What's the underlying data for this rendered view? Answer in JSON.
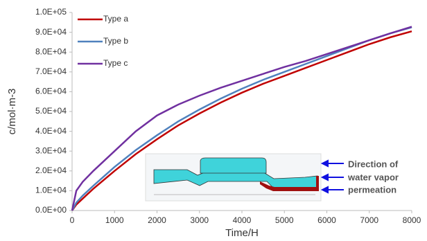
{
  "chart_data": {
    "type": "line",
    "xlabel": "Time/H",
    "ylabel": "c/mol·m-3",
    "x": [
      0,
      100,
      250,
      500,
      1000,
      1500,
      2000,
      2500,
      3000,
      3500,
      4000,
      4500,
      5000,
      5500,
      6000,
      6500,
      7000,
      7500,
      8000
    ],
    "series": [
      {
        "name": "Type a",
        "color": "#c00000",
        "values": [
          0,
          3000,
          6000,
          11000,
          20000,
          28500,
          36000,
          43000,
          49000,
          54500,
          59500,
          64000,
          68000,
          72000,
          76000,
          80000,
          84000,
          87500,
          90500
        ]
      },
      {
        "name": "Type b",
        "color": "#4f81bd",
        "values": [
          0,
          4000,
          7500,
          12500,
          22000,
          30500,
          38000,
          45000,
          51000,
          56500,
          61500,
          66000,
          70000,
          74000,
          78000,
          82000,
          86000,
          89500,
          92500
        ]
      },
      {
        "name": "Type c",
        "color": "#7030a0",
        "values": [
          0,
          10000,
          14500,
          20000,
          30000,
          40000,
          48000,
          53500,
          58000,
          62000,
          65500,
          69000,
          72500,
          75500,
          79000,
          82500,
          86000,
          89500,
          92800
        ]
      }
    ],
    "xlim": [
      0,
      8000
    ],
    "xticks": [
      0,
      1000,
      2000,
      3000,
      4000,
      5000,
      6000,
      7000,
      8000
    ],
    "ylim": [
      0,
      100000
    ],
    "yticks": [
      {
        "value": 0,
        "label": "0.0E+00"
      },
      {
        "value": 10000,
        "label": "1.0E+04"
      },
      {
        "value": 20000,
        "label": "2.0E+04"
      },
      {
        "value": 30000,
        "label": "3.0E+04"
      },
      {
        "value": 40000,
        "label": "4.0E+04"
      },
      {
        "value": 50000,
        "label": "5.0E+04"
      },
      {
        "value": 60000,
        "label": "6.0E+04"
      },
      {
        "value": 70000,
        "label": "7.0E+04"
      },
      {
        "value": 80000,
        "label": "8.0E+04"
      },
      {
        "value": 90000,
        "label": "9.0E+04"
      },
      {
        "value": 100000,
        "label": "1.0E+05"
      }
    ],
    "grid": false,
    "legend": "top-left",
    "annotations": [
      "Direction of",
      "water vapor",
      "permeation"
    ]
  }
}
